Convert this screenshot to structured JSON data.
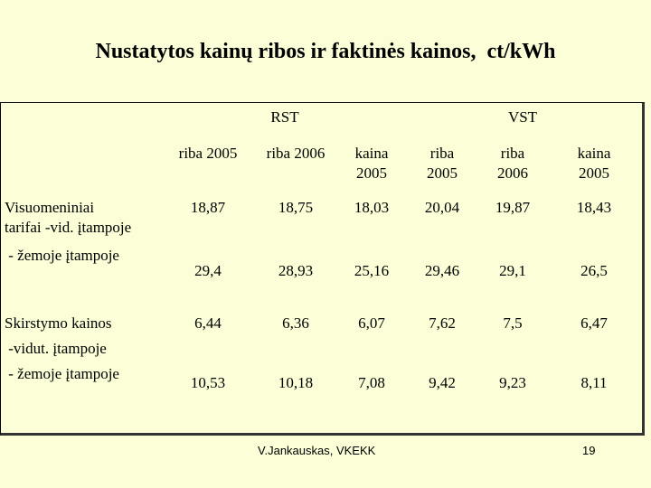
{
  "title": "Nustatytos kainų ribos ir faktinės kainos,  ct/kWh",
  "table": {
    "groups": [
      "RST",
      "VST"
    ],
    "columns": [
      "riba 2005",
      "riba 2006",
      "kaina 2005",
      "riba 2005",
      "riba 2006",
      "kaina 2005"
    ],
    "sections": [
      {
        "label": [
          "Visuomeniniai",
          "tarifai -vid. įtampoje",
          " - žemoje įtampoje"
        ],
        "rows": [
          [
            "18,87",
            "18,75",
            "18,03",
            "20,04",
            "19,87",
            "18,43"
          ],
          [
            "29,4",
            "28,93",
            "25,16",
            "29,46",
            "29,1",
            "26,5"
          ]
        ]
      },
      {
        "label": [
          "Skirstymo kainos",
          " -vidut. įtampoje",
          " - žemoje įtampoje"
        ],
        "rows": [
          [
            "6,44",
            "6,36",
            "6,07",
            "7,62",
            "7,5",
            "6,47"
          ],
          [
            "10,53",
            "10,18",
            "7,08",
            "9,42",
            "9,23",
            "8,11"
          ]
        ]
      }
    ]
  },
  "footer": {
    "author": "V.Jankauskas, VKEKK",
    "page": "19"
  }
}
